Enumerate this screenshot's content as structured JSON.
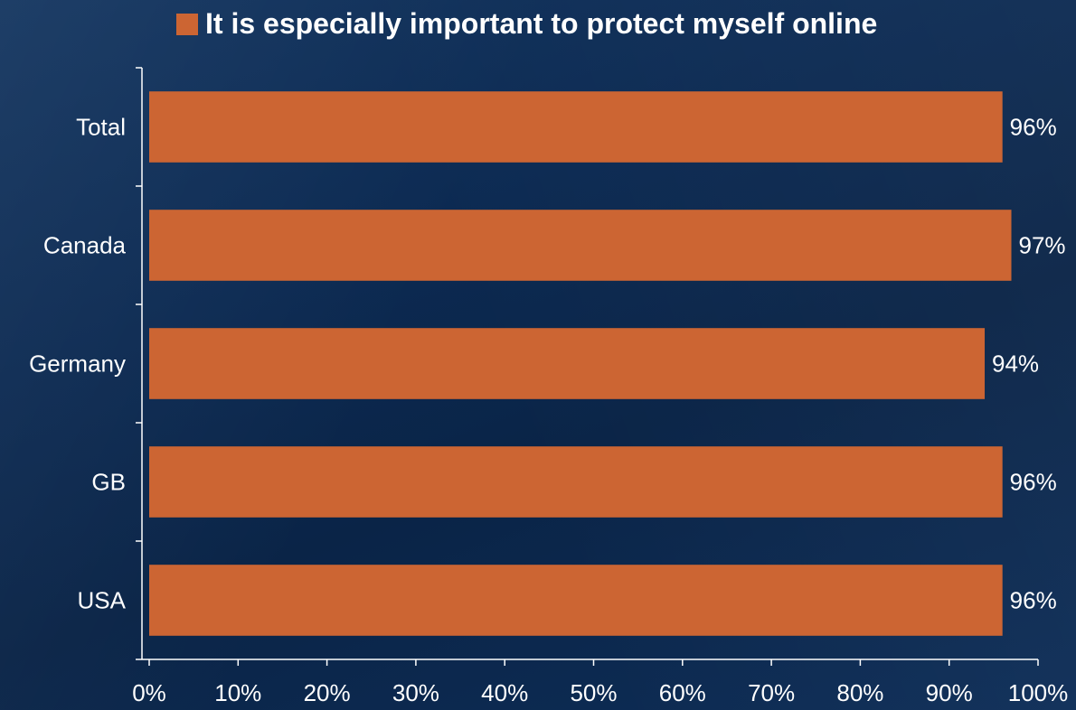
{
  "colors": {
    "bar": "#cc6533",
    "axis": "#ffffff",
    "text": "#ffffff"
  },
  "chart_data": {
    "type": "bar",
    "orientation": "horizontal",
    "categories": [
      "Total",
      "Canada",
      "Germany",
      "GB",
      "USA"
    ],
    "series": [
      {
        "name": "It is especially important to protect myself online",
        "values": [
          96,
          97,
          94,
          96,
          96
        ],
        "value_labels": [
          "96%",
          "97%",
          "94%",
          "96%",
          "96%"
        ]
      }
    ],
    "xlim": [
      0,
      100
    ],
    "x_ticks": [
      "0%",
      "10%",
      "20%",
      "30%",
      "40%",
      "50%",
      "60%",
      "70%",
      "80%",
      "90%",
      "100%"
    ],
    "legend_position": "top",
    "grid": false,
    "title": "",
    "xlabel": "",
    "ylabel": ""
  }
}
